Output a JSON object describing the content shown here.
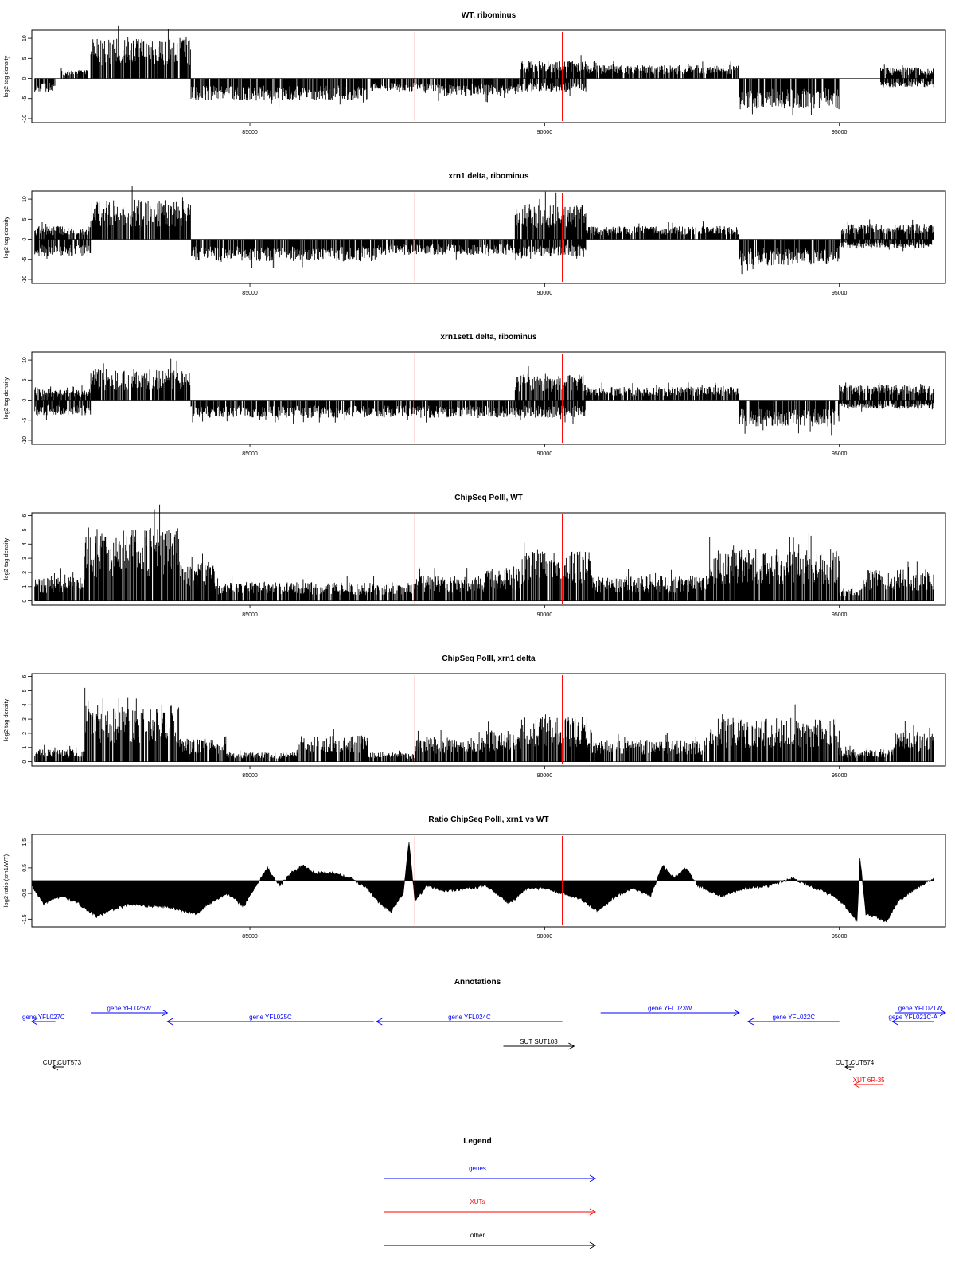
{
  "colors": {
    "signal": "#000000",
    "marker": "#ff0000",
    "gene": "#0000ff",
    "xut": "#ff0000",
    "other": "#000000"
  },
  "chart_data": [
    {
      "type": "bar",
      "title": "WT, ribominus",
      "ylabel": "log2 tag density",
      "xlim": [
        81300,
        96800
      ],
      "ylim": [
        -11,
        12
      ],
      "yticks": [
        10,
        5,
        0,
        -5,
        -10
      ],
      "yticklabels": [
        "10",
        "5",
        "0",
        "-5",
        "-10"
      ],
      "xticks": [
        85000,
        90000,
        95000
      ],
      "xticklabels": [
        "85000",
        "90000",
        "95000"
      ],
      "markers": [
        87800,
        90300
      ],
      "regions": [
        {
          "x": [
            81350,
            81700
          ],
          "amp": 3,
          "sign": -1
        },
        {
          "x": [
            81800,
            82250
          ],
          "amp": 2,
          "sign": 1
        },
        {
          "x": [
            82300,
            84000
          ],
          "amp": 9,
          "sign": 1
        },
        {
          "x": [
            84000,
            87000
          ],
          "amp": 5,
          "sign": -1
        },
        {
          "x": [
            87050,
            88200
          ],
          "amp": 3,
          "sign": -1
        },
        {
          "x": [
            88200,
            89600
          ],
          "amp": 4,
          "sign": -1
        },
        {
          "x": [
            89600,
            90700
          ],
          "amp": 4,
          "sign": 1
        },
        {
          "x": [
            89600,
            90700
          ],
          "amp": 3,
          "sign": -1
        },
        {
          "x": [
            90700,
            93300
          ],
          "amp": 3,
          "sign": 1
        },
        {
          "x": [
            93300,
            95000
          ],
          "amp": 7,
          "sign": -1
        },
        {
          "x": [
            95700,
            96600
          ],
          "amp": 2.5,
          "sign": 1
        },
        {
          "x": [
            95700,
            96600
          ],
          "amp": 2,
          "sign": -1
        }
      ]
    },
    {
      "type": "bar",
      "title": "xrn1 delta, ribominus",
      "ylabel": "log2 tag density",
      "xlim": [
        81300,
        96800
      ],
      "ylim": [
        -11,
        12
      ],
      "yticks": [
        10,
        5,
        0,
        -5,
        -10
      ],
      "yticklabels": [
        "10",
        "5",
        "0",
        "-5",
        "-10"
      ],
      "xticks": [
        85000,
        90000,
        95000
      ],
      "xticklabels": [
        "85000",
        "90000",
        "95000"
      ],
      "markers": [
        87800,
        90300
      ],
      "regions": [
        {
          "x": [
            81350,
            82300
          ],
          "amp": 4,
          "sign": -1
        },
        {
          "x": [
            81350,
            82300
          ],
          "amp": 3,
          "sign": 1
        },
        {
          "x": [
            82300,
            84000
          ],
          "amp": 9,
          "sign": 1
        },
        {
          "x": [
            84000,
            87150
          ],
          "amp": 5,
          "sign": -1
        },
        {
          "x": [
            87150,
            89500
          ],
          "amp": 3.5,
          "sign": -1
        },
        {
          "x": [
            89500,
            90700
          ],
          "amp": 8,
          "sign": 1
        },
        {
          "x": [
            89500,
            90700
          ],
          "amp": 4,
          "sign": -1
        },
        {
          "x": [
            90700,
            93300
          ],
          "amp": 3,
          "sign": 1
        },
        {
          "x": [
            93300,
            95000
          ],
          "amp": 6,
          "sign": -1
        },
        {
          "x": [
            95000,
            96600
          ],
          "amp": 3.5,
          "sign": 1
        },
        {
          "x": [
            95000,
            96600
          ],
          "amp": 2,
          "sign": -1
        }
      ]
    },
    {
      "type": "bar",
      "title": "xrn1set1 delta, ribominus",
      "ylabel": "log2 tag density",
      "xlim": [
        81300,
        96800
      ],
      "ylim": [
        -11,
        12
      ],
      "yticks": [
        10,
        5,
        0,
        -5,
        -10
      ],
      "yticklabels": [
        "10",
        "5",
        "0",
        "-5",
        "-10"
      ],
      "xticks": [
        85000,
        90000,
        95000
      ],
      "xticklabels": [
        "85000",
        "90000",
        "95000"
      ],
      "markers": [
        87800,
        90300
      ],
      "regions": [
        {
          "x": [
            81350,
            82300
          ],
          "amp": 3.5,
          "sign": -1
        },
        {
          "x": [
            81350,
            82300
          ],
          "amp": 2.5,
          "sign": 1
        },
        {
          "x": [
            82300,
            84000
          ],
          "amp": 7,
          "sign": 1
        },
        {
          "x": [
            84000,
            87100
          ],
          "amp": 4,
          "sign": -1
        },
        {
          "x": [
            87100,
            89500
          ],
          "amp": 4,
          "sign": -1
        },
        {
          "x": [
            89500,
            90700
          ],
          "amp": 6,
          "sign": 1
        },
        {
          "x": [
            89500,
            90700
          ],
          "amp": 4,
          "sign": -1
        },
        {
          "x": [
            90700,
            93300
          ],
          "amp": 3,
          "sign": 1
        },
        {
          "x": [
            93300,
            95000
          ],
          "amp": 6,
          "sign": -1
        },
        {
          "x": [
            95000,
            96600
          ],
          "amp": 3.5,
          "sign": 1
        },
        {
          "x": [
            95000,
            96600
          ],
          "amp": 2,
          "sign": -1
        }
      ]
    },
    {
      "type": "bar",
      "title": "ChipSeq PolII, WT",
      "ylabel": "log2 tag density",
      "xlim": [
        81300,
        96800
      ],
      "ylim": [
        -0.3,
        6.2
      ],
      "yticks": [
        0,
        1,
        2,
        3,
        4,
        5,
        6
      ],
      "yticklabels": [
        "0",
        "1",
        "2",
        "3",
        "4",
        "5",
        "6"
      ],
      "xticks": [
        85000,
        90000,
        95000
      ],
      "xticklabels": [
        "85000",
        "90000",
        "95000"
      ],
      "markers": [
        87800,
        90300
      ],
      "regions": [
        {
          "x": [
            81350,
            82200
          ],
          "amp": 1.6,
          "sign": 1
        },
        {
          "x": [
            82200,
            83800
          ],
          "amp": 4.7,
          "sign": 1
        },
        {
          "x": [
            83800,
            84400
          ],
          "amp": 2.5,
          "sign": 1
        },
        {
          "x": [
            84400,
            87800
          ],
          "amp": 1.2,
          "sign": 1
        },
        {
          "x": [
            87800,
            89000
          ],
          "amp": 1.6,
          "sign": 1
        },
        {
          "x": [
            89000,
            89600
          ],
          "amp": 2.2,
          "sign": 1
        },
        {
          "x": [
            89600,
            90800
          ],
          "amp": 3.2,
          "sign": 1
        },
        {
          "x": [
            90800,
            92800
          ],
          "amp": 1.6,
          "sign": 1
        },
        {
          "x": [
            92800,
            95000
          ],
          "amp": 3.3,
          "sign": 1
        },
        {
          "x": [
            95000,
            95400
          ],
          "amp": 0.8,
          "sign": 1
        },
        {
          "x": [
            95400,
            96600
          ],
          "amp": 2.0,
          "sign": 1
        }
      ]
    },
    {
      "type": "bar",
      "title": "ChipSeq PolII, xrn1 delta",
      "ylabel": "log2 tag density",
      "xlim": [
        81300,
        96800
      ],
      "ylim": [
        -0.3,
        6.2
      ],
      "yticks": [
        0,
        1,
        2,
        3,
        4,
        5,
        6
      ],
      "yticklabels": [
        "0",
        "1",
        "2",
        "3",
        "4",
        "5",
        "6"
      ],
      "xticks": [
        85000,
        90000,
        95000
      ],
      "xticklabels": [
        "85000",
        "90000",
        "95000"
      ],
      "markers": [
        87800,
        90300
      ],
      "regions": [
        {
          "x": [
            81350,
            82200
          ],
          "amp": 0.8,
          "sign": 1
        },
        {
          "x": [
            82200,
            83800
          ],
          "amp": 3.6,
          "sign": 1
        },
        {
          "x": [
            83800,
            84600
          ],
          "amp": 1.5,
          "sign": 1
        },
        {
          "x": [
            84600,
            85800
          ],
          "amp": 0.6,
          "sign": 1
        },
        {
          "x": [
            85800,
            87000
          ],
          "amp": 1.7,
          "sign": 1
        },
        {
          "x": [
            87000,
            87800
          ],
          "amp": 0.6,
          "sign": 1
        },
        {
          "x": [
            87800,
            89000
          ],
          "amp": 1.6,
          "sign": 1
        },
        {
          "x": [
            89000,
            89600
          ],
          "amp": 2.0,
          "sign": 1
        },
        {
          "x": [
            89600,
            90800
          ],
          "amp": 2.9,
          "sign": 1
        },
        {
          "x": [
            90800,
            92800
          ],
          "amp": 1.4,
          "sign": 1
        },
        {
          "x": [
            92800,
            95000
          ],
          "amp": 2.8,
          "sign": 1
        },
        {
          "x": [
            95000,
            95900
          ],
          "amp": 0.8,
          "sign": 1
        },
        {
          "x": [
            95900,
            96600
          ],
          "amp": 2.0,
          "sign": 1
        }
      ]
    },
    {
      "type": "area",
      "title": "Ratio ChipSeq PolII, xrn1 vs WT",
      "ylabel": "log2 ratio (xrn1/WT)",
      "xlim": [
        81300,
        96800
      ],
      "ylim": [
        -1.8,
        1.8
      ],
      "yticks": [
        1.5,
        0.5,
        -0.5,
        -1.5
      ],
      "yticklabels": [
        "1.5",
        "0.5",
        "-0.5",
        "-1.5"
      ],
      "xticks": [
        85000,
        90000,
        95000
      ],
      "xticklabels": [
        "85000",
        "90000",
        "95000"
      ],
      "markers": [
        87800,
        90300
      ],
      "x": [
        81300,
        81500,
        81800,
        82100,
        82400,
        82700,
        83000,
        83300,
        83600,
        83900,
        84100,
        84300,
        84600,
        84900,
        85100,
        85300,
        85500,
        85700,
        85900,
        86100,
        86400,
        86700,
        87000,
        87200,
        87400,
        87600,
        87700,
        87800,
        88000,
        88300,
        88700,
        89000,
        89400,
        89700,
        90000,
        90300,
        90600,
        90900,
        91200,
        91500,
        91800,
        92000,
        92200,
        92400,
        92600,
        93000,
        93400,
        93800,
        94200,
        94600,
        94900,
        95100,
        95300,
        95350,
        95450,
        95600,
        95800,
        96000,
        96300,
        96600
      ],
      "values": [
        -0.2,
        -0.9,
        -0.6,
        -0.9,
        -1.4,
        -1.1,
        -0.9,
        -1.0,
        -1.0,
        -1.2,
        -1.3,
        -0.9,
        -0.5,
        -1.0,
        -0.2,
        0.5,
        -0.2,
        0.3,
        0.6,
        0.3,
        0.3,
        0.1,
        -0.3,
        -0.9,
        -1.2,
        -0.5,
        1.5,
        -0.8,
        -0.2,
        -0.4,
        -0.3,
        -0.2,
        -0.9,
        -0.3,
        -0.3,
        -0.5,
        -0.7,
        -1.2,
        -0.6,
        -0.3,
        -0.6,
        0.6,
        0.1,
        0.5,
        -0.2,
        -0.6,
        -0.3,
        -0.2,
        0.1,
        -0.3,
        -0.6,
        -1.0,
        -1.6,
        0.9,
        -1.3,
        -1.4,
        -1.6,
        -0.8,
        -0.3,
        0.1
      ]
    }
  ],
  "annotations": {
    "title": "Annotations",
    "features": [
      {
        "label": "gene YFL027C",
        "color": "gene",
        "x1": 81300,
        "x2": 81700,
        "dir": "left",
        "row": 1
      },
      {
        "label": "gene YFL026W",
        "color": "gene",
        "x1": 82300,
        "x2": 83600,
        "dir": "right",
        "row": 0
      },
      {
        "label": "gene YFL025C",
        "color": "gene",
        "x1": 83600,
        "x2": 87100,
        "dir": "left",
        "row": 1
      },
      {
        "label": "gene YFL024C",
        "color": "gene",
        "x1": 87150,
        "x2": 90300,
        "dir": "left",
        "row": 1
      },
      {
        "label": "gene YFL023W",
        "color": "gene",
        "x1": 90950,
        "x2": 93300,
        "dir": "right",
        "row": 0
      },
      {
        "label": "gene YFL022C",
        "color": "gene",
        "x1": 93450,
        "x2": 95000,
        "dir": "left",
        "row": 1
      },
      {
        "label": "gene YFL021W",
        "color": "gene",
        "x1": 95950,
        "x2": 96800,
        "dir": "right",
        "row": 0
      },
      {
        "label": "gene YFL021C-A",
        "color": "gene",
        "x1": 95900,
        "x2": 96600,
        "dir": "left",
        "row": 1
      },
      {
        "label": "SUT SUT103",
        "color": "other",
        "x1": 89300,
        "x2": 90500,
        "dir": "right",
        "row": 2
      },
      {
        "label": "CUT CUT573",
        "color": "other",
        "x1": 81650,
        "x2": 81850,
        "dir": "left",
        "row": 3
      },
      {
        "label": "CUT CUT574",
        "color": "other",
        "x1": 95100,
        "x2": 95250,
        "dir": "left",
        "row": 3
      },
      {
        "label": "XUT 6R-35",
        "color": "xut",
        "x1": 95250,
        "x2": 95750,
        "dir": "left",
        "row": 4
      }
    ]
  },
  "legend": {
    "title": "Legend",
    "items": [
      {
        "label": "genes",
        "color": "gene"
      },
      {
        "label": "XUTs",
        "color": "xut"
      },
      {
        "label": "other",
        "color": "other"
      }
    ]
  }
}
